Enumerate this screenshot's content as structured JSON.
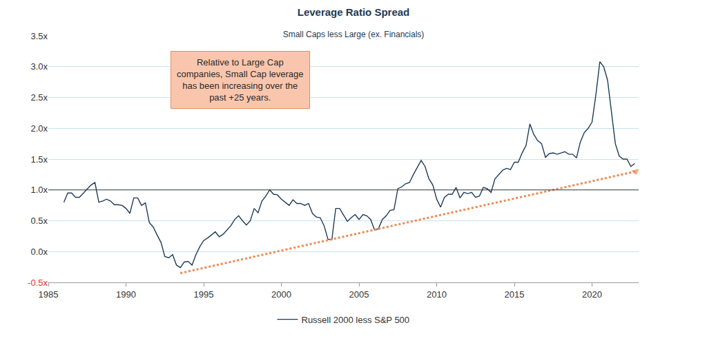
{
  "chart_data": {
    "type": "line",
    "title": "Leverage Ratio Spread",
    "subtitle": "Small Caps less Large (ex. Financials)",
    "annotation": "Relative to Large Cap\ncompanies, Small Cap leverage\nhas been increasing over the\npast +25 years.",
    "xlim": [
      1985,
      2023
    ],
    "xticks": [
      1985,
      1990,
      1995,
      2000,
      2005,
      2010,
      2015,
      2020
    ],
    "ylim": [
      -0.5,
      3.5
    ],
    "yticks": [
      {
        "value": -0.5,
        "label": "-0.5x"
      },
      {
        "value": 0,
        "label": "0.0x"
      },
      {
        "value": 0.5,
        "label": "0.5x"
      },
      {
        "value": 1,
        "label": "1.0x"
      },
      {
        "value": 1.5,
        "label": "1.5x"
      },
      {
        "value": 2,
        "label": "2.0x"
      },
      {
        "value": 2.5,
        "label": "2.5x"
      },
      {
        "value": 3,
        "label": "3.0x"
      },
      {
        "value": 3.5,
        "label": "3.5x"
      }
    ],
    "reference_line": 1.0,
    "grid": true,
    "legend": "bottom",
    "series": [
      {
        "name": "Russell 2000 less S&P 500",
        "color": "#1e3a56",
        "line_style": "solid",
        "x": [
          1986.0,
          1986.25,
          1986.5,
          1986.75,
          1987.0,
          1987.25,
          1987.5,
          1987.75,
          1988.0,
          1988.25,
          1988.5,
          1988.75,
          1989.0,
          1989.25,
          1989.5,
          1989.75,
          1990.0,
          1990.25,
          1990.5,
          1990.75,
          1991.0,
          1991.25,
          1991.5,
          1991.75,
          1992.0,
          1992.25,
          1992.5,
          1992.75,
          1993.0,
          1993.25,
          1993.5,
          1993.75,
          1994.0,
          1994.25,
          1994.5,
          1994.75,
          1995.0,
          1995.25,
          1995.5,
          1995.75,
          1996.0,
          1996.25,
          1996.5,
          1996.75,
          1997.0,
          1997.25,
          1997.5,
          1997.75,
          1998.0,
          1998.25,
          1998.5,
          1998.75,
          1999.0,
          1999.25,
          1999.5,
          1999.75,
          2000.0,
          2000.25,
          2000.5,
          2000.75,
          2001.0,
          2001.25,
          2001.5,
          2001.75,
          2002.0,
          2002.25,
          2002.5,
          2002.75,
          2003.0,
          2003.25,
          2003.5,
          2003.75,
          2004.0,
          2004.25,
          2004.5,
          2004.75,
          2005.0,
          2005.25,
          2005.5,
          2005.75,
          2006.0,
          2006.25,
          2006.5,
          2006.75,
          2007.0,
          2007.25,
          2007.5,
          2007.75,
          2008.0,
          2008.25,
          2008.5,
          2008.75,
          2009.0,
          2009.25,
          2009.5,
          2009.75,
          2010.0,
          2010.25,
          2010.5,
          2010.75,
          2011.0,
          2011.25,
          2011.5,
          2011.75,
          2012.0,
          2012.25,
          2012.5,
          2012.75,
          2013.0,
          2013.25,
          2013.5,
          2013.75,
          2014.0,
          2014.25,
          2014.5,
          2014.75,
          2015.0,
          2015.25,
          2015.5,
          2015.75,
          2016.0,
          2016.25,
          2016.5,
          2016.75,
          2017.0,
          2017.25,
          2017.5,
          2017.75,
          2018.0,
          2018.25,
          2018.5,
          2018.75,
          2019.0,
          2019.25,
          2019.5,
          2019.75,
          2020.0,
          2020.25,
          2020.5,
          2020.75,
          2021.0,
          2021.25,
          2021.5,
          2021.75,
          2022.0,
          2022.25,
          2022.5,
          2022.75
        ],
        "values": [
          0.8,
          0.95,
          0.95,
          0.88,
          0.88,
          0.95,
          1.02,
          1.08,
          1.12,
          0.8,
          0.82,
          0.85,
          0.82,
          0.76,
          0.76,
          0.75,
          0.7,
          0.62,
          0.87,
          0.87,
          0.75,
          0.79,
          0.47,
          0.4,
          0.27,
          0.15,
          -0.08,
          -0.1,
          -0.05,
          -0.22,
          -0.26,
          -0.17,
          -0.16,
          -0.22,
          -0.05,
          0.08,
          0.18,
          0.22,
          0.27,
          0.32,
          0.24,
          0.28,
          0.35,
          0.42,
          0.52,
          0.58,
          0.5,
          0.43,
          0.5,
          0.7,
          0.63,
          0.82,
          0.9,
          1.0,
          0.93,
          0.92,
          0.85,
          0.8,
          0.75,
          0.84,
          0.78,
          0.78,
          0.75,
          0.78,
          0.62,
          0.56,
          0.55,
          0.42,
          0.2,
          0.19,
          0.7,
          0.7,
          0.6,
          0.49,
          0.55,
          0.6,
          0.52,
          0.6,
          0.58,
          0.52,
          0.35,
          0.37,
          0.52,
          0.58,
          0.67,
          0.68,
          1.02,
          1.05,
          1.1,
          1.12,
          1.25,
          1.37,
          1.48,
          1.38,
          1.18,
          1.08,
          0.85,
          0.72,
          0.88,
          0.93,
          0.93,
          1.04,
          0.87,
          0.96,
          0.94,
          0.96,
          0.88,
          0.9,
          1.04,
          1.02,
          0.96,
          1.18,
          1.25,
          1.32,
          1.35,
          1.33,
          1.45,
          1.45,
          1.6,
          1.72,
          2.07,
          1.9,
          1.8,
          1.75,
          1.53,
          1.59,
          1.6,
          1.58,
          1.6,
          1.62,
          1.58,
          1.58,
          1.52,
          1.78,
          1.93,
          2.0,
          2.1,
          2.55,
          3.08,
          3.0,
          2.78,
          2.25,
          1.75,
          1.55,
          1.5,
          1.5,
          1.38,
          1.43
        ]
      },
      {
        "color": "#f0884e",
        "line_style": "dotted",
        "marker": "arrow",
        "x": [
          1993.5,
          2022.8
        ],
        "values": [
          -0.35,
          1.3
        ]
      }
    ]
  }
}
